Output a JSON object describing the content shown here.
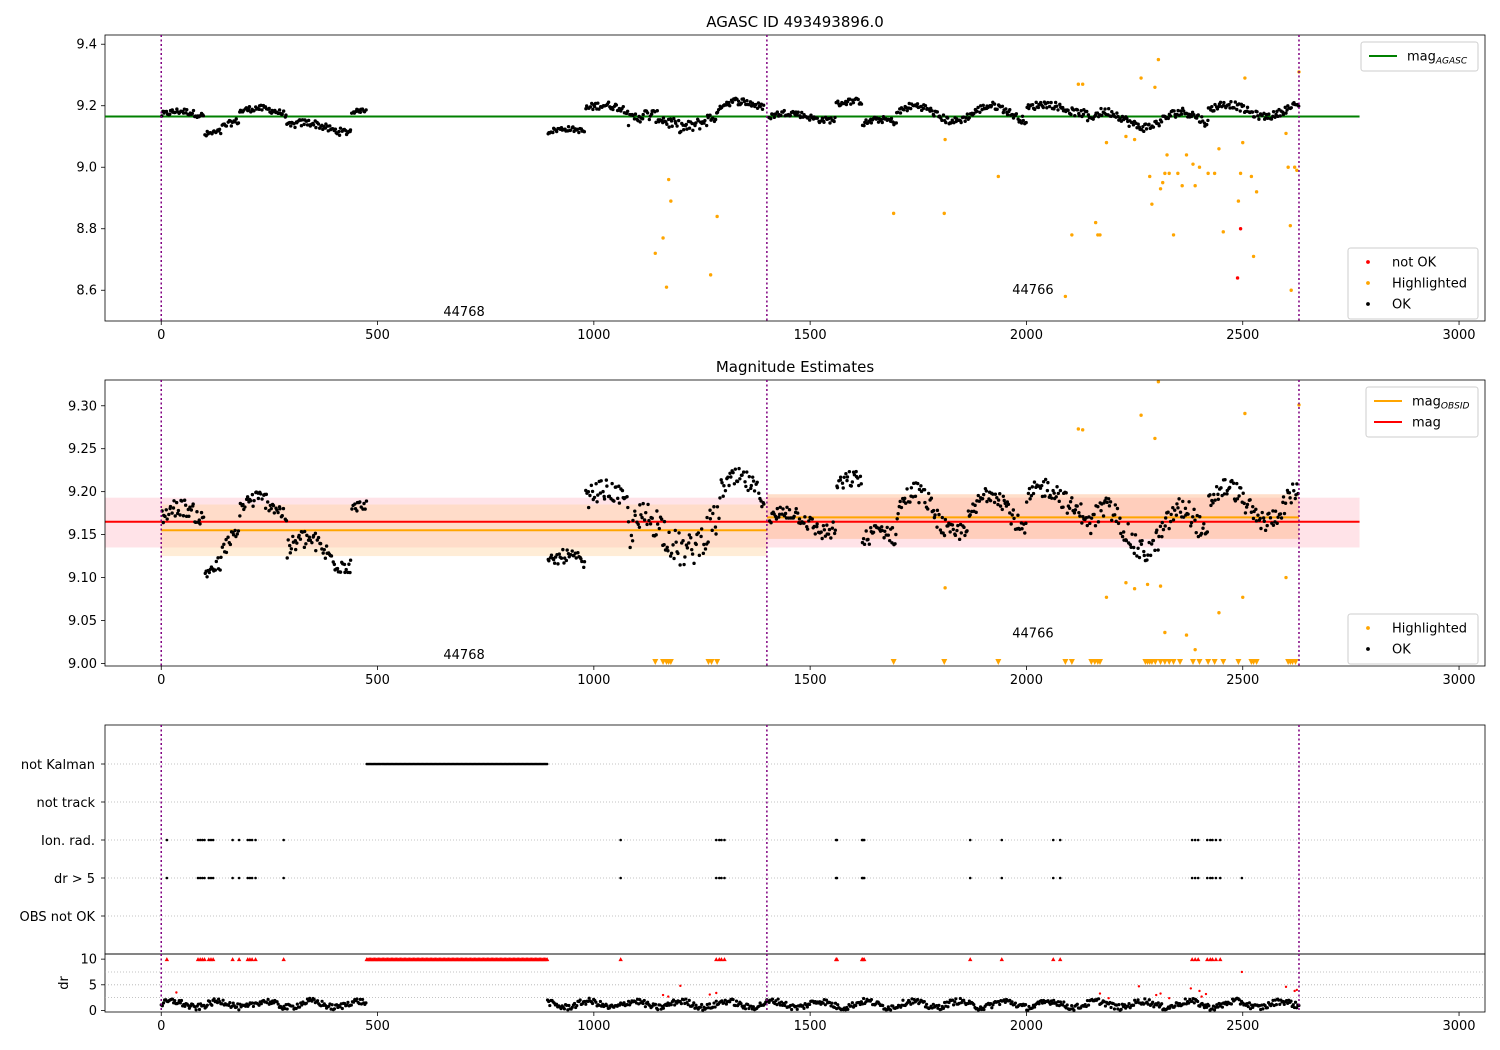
{
  "figure": {
    "background": "#ffffff"
  },
  "chart_data": [
    {
      "id": "agasc",
      "type": "scatter",
      "title": "AGASC ID 493493896.0",
      "xlim": [
        -130,
        3060
      ],
      "ylim": [
        8.5,
        9.43
      ],
      "xticks": [
        0,
        500,
        1000,
        1500,
        2000,
        2500,
        3000
      ],
      "yticks": [
        8.6,
        8.8,
        9.0,
        9.2,
        9.4
      ],
      "ytick_labels": [
        "8.6",
        "8.8",
        "9.0",
        "9.2",
        "9.4"
      ],
      "obs_boundaries": [
        0,
        1400,
        2630
      ],
      "obsids": [
        {
          "label": "44768",
          "x": 700,
          "y": 8.53
        },
        {
          "label": "44766",
          "x": 2015,
          "y": 8.6
        }
      ],
      "lines": [
        {
          "label": "mag",
          "subscript": "AGASC",
          "color": "#008000",
          "y": 9.165,
          "x": [
            -130,
            2770
          ]
        }
      ],
      "ok_segments": [
        {
          "x": [
            0,
            100
          ],
          "mean": 9.17,
          "amp": 0.012,
          "noise": 0.01
        },
        {
          "x": [
            100,
            140
          ],
          "mean": 9.105,
          "amp": 0.01,
          "noise": 0.01
        },
        {
          "x": [
            140,
            180
          ],
          "mean": 9.13,
          "amp": 0.02,
          "noise": 0.01
        },
        {
          "x": [
            180,
            290
          ],
          "mean": 9.18,
          "amp": 0.012,
          "noise": 0.01
        },
        {
          "x": [
            290,
            440
          ],
          "mean": 9.13,
          "amp": 0.015,
          "noise": 0.012
        },
        {
          "x": [
            440,
            475
          ],
          "mean": 9.18,
          "amp": 0.006,
          "noise": 0.006
        },
        {
          "x": [
            893,
            980
          ],
          "mean": 9.115,
          "amp": 0.01,
          "noise": 0.008
        },
        {
          "x": [
            980,
            1080
          ],
          "mean": 9.19,
          "amp": 0.012,
          "noise": 0.012
        },
        {
          "x": [
            1080,
            1290
          ],
          "mean": 9.15,
          "amp": 0.02,
          "noise": 0.02
        },
        {
          "x": [
            1290,
            1395
          ],
          "mean": 9.2,
          "amp": 0.015,
          "noise": 0.012
        },
        {
          "x": [
            1405,
            1560
          ],
          "mean": 9.165,
          "amp": 0.012,
          "noise": 0.01
        },
        {
          "x": [
            1560,
            1620
          ],
          "mean": 9.205,
          "amp": 0.01,
          "noise": 0.01
        },
        {
          "x": [
            1620,
            1700
          ],
          "mean": 9.14,
          "amp": 0.015,
          "noise": 0.01
        },
        {
          "x": [
            1700,
            2000
          ],
          "mean": 9.175,
          "amp": 0.025,
          "noise": 0.012
        },
        {
          "x": [
            2000,
            2140
          ],
          "mean": 9.19,
          "amp": 0.015,
          "noise": 0.012
        },
        {
          "x": [
            2140,
            2420
          ],
          "mean": 9.155,
          "amp": 0.025,
          "noise": 0.014
        },
        {
          "x": [
            2420,
            2630
          ],
          "mean": 9.185,
          "amp": 0.02,
          "noise": 0.012
        }
      ],
      "highlighted": [
        [
          1142,
          8.72
        ],
        [
          1160,
          8.77
        ],
        [
          1168,
          8.61
        ],
        [
          1173,
          8.96
        ],
        [
          1178,
          8.89
        ],
        [
          1270,
          8.65
        ],
        [
          1285,
          8.84
        ],
        [
          1693,
          8.85
        ],
        [
          1810,
          8.85
        ],
        [
          1812,
          9.09
        ],
        [
          1935,
          8.97
        ],
        [
          2090,
          8.58
        ],
        [
          2105,
          8.78
        ],
        [
          2120,
          9.27
        ],
        [
          2130,
          9.27
        ],
        [
          2160,
          8.82
        ],
        [
          2165,
          8.78
        ],
        [
          2170,
          8.78
        ],
        [
          2185,
          9.08
        ],
        [
          2230,
          9.1
        ],
        [
          2250,
          9.09
        ],
        [
          2265,
          9.29
        ],
        [
          2285,
          8.97
        ],
        [
          2290,
          8.88
        ],
        [
          2297,
          9.26
        ],
        [
          2305,
          9.35
        ],
        [
          2310,
          8.93
        ],
        [
          2315,
          8.95
        ],
        [
          2320,
          8.98
        ],
        [
          2325,
          9.04
        ],
        [
          2330,
          8.98
        ],
        [
          2340,
          8.78
        ],
        [
          2350,
          8.98
        ],
        [
          2360,
          8.94
        ],
        [
          2370,
          9.04
        ],
        [
          2385,
          9.01
        ],
        [
          2390,
          8.94
        ],
        [
          2400,
          9.0
        ],
        [
          2420,
          8.98
        ],
        [
          2435,
          8.98
        ],
        [
          2445,
          9.06
        ],
        [
          2455,
          8.79
        ],
        [
          2490,
          8.89
        ],
        [
          2495,
          8.98
        ],
        [
          2500,
          9.08
        ],
        [
          2505,
          9.29
        ],
        [
          2520,
          8.97
        ],
        [
          2525,
          8.71
        ],
        [
          2532,
          8.92
        ],
        [
          2600,
          9.11
        ],
        [
          2605,
          9.0
        ],
        [
          2610,
          8.81
        ],
        [
          2612,
          8.6
        ],
        [
          2620,
          9.0
        ],
        [
          2625,
          8.99
        ],
        [
          2630,
          9.31
        ]
      ],
      "not_ok": [
        [
          2488,
          8.64
        ],
        [
          2495,
          8.8
        ]
      ],
      "legends": [
        {
          "position": "upper-right",
          "entries": [
            {
              "label": "mag",
              "subscript": "AGASC",
              "kind": "line",
              "color": "#008000"
            }
          ]
        },
        {
          "position": "lower-right",
          "entries": [
            {
              "label": "not OK",
              "kind": "dot",
              "color": "#ff0000"
            },
            {
              "label": "Highlighted",
              "kind": "dot",
              "color": "#ffa500"
            },
            {
              "label": "OK",
              "kind": "dot",
              "color": "#000000"
            }
          ]
        }
      ]
    },
    {
      "id": "estimates",
      "type": "scatter",
      "title": "Magnitude Estimates",
      "xlim": [
        -130,
        3060
      ],
      "ylim": [
        8.997,
        9.33
      ],
      "xticks": [
        0,
        500,
        1000,
        1500,
        2000,
        2500,
        3000
      ],
      "yticks": [
        9.0,
        9.05,
        9.1,
        9.15,
        9.2,
        9.25,
        9.3
      ],
      "ytick_labels": [
        "9.00",
        "9.05",
        "9.10",
        "9.15",
        "9.20",
        "9.25",
        "9.30"
      ],
      "obs_boundaries": [
        0,
        1400,
        2630
      ],
      "obsids": [
        {
          "label": "44768",
          "x": 700,
          "y": 9.01
        },
        {
          "label": "44766",
          "x": 2015,
          "y": 9.035
        }
      ],
      "bands": [
        {
          "x": [
            -130,
            2770
          ],
          "y": [
            9.135,
            9.193
          ],
          "color": "#ffc0cb",
          "opacity": 0.45
        },
        {
          "x": [
            0,
            1400
          ],
          "y": [
            9.125,
            9.185
          ],
          "color": "#ffd39b",
          "opacity": 0.4
        },
        {
          "x": [
            1400,
            2630
          ],
          "y": [
            9.145,
            9.197
          ],
          "color": "#ffb07a",
          "opacity": 0.4
        }
      ],
      "lines": [
        {
          "label": "mag",
          "color": "#ff0000",
          "y": 9.165,
          "x": [
            -130,
            2770
          ]
        },
        {
          "label": "mag",
          "subscript": "OBSID",
          "color": "#ffa500",
          "y": 9.155,
          "x": [
            0,
            1400
          ]
        },
        {
          "label": "mag",
          "subscript": "OBSID",
          "color": "#ffa500",
          "y": 9.17,
          "x": [
            1400,
            2630
          ]
        }
      ],
      "ok_segments": [
        {
          "x": [
            0,
            100
          ],
          "mean": 9.17,
          "amp": 0.012,
          "noise": 0.01
        },
        {
          "x": [
            100,
            140
          ],
          "mean": 9.105,
          "amp": 0.01,
          "noise": 0.01
        },
        {
          "x": [
            140,
            180
          ],
          "mean": 9.13,
          "amp": 0.02,
          "noise": 0.01
        },
        {
          "x": [
            180,
            290
          ],
          "mean": 9.18,
          "amp": 0.012,
          "noise": 0.01
        },
        {
          "x": [
            290,
            440
          ],
          "mean": 9.13,
          "amp": 0.015,
          "noise": 0.012
        },
        {
          "x": [
            440,
            475
          ],
          "mean": 9.18,
          "amp": 0.006,
          "noise": 0.006
        },
        {
          "x": [
            893,
            980
          ],
          "mean": 9.115,
          "amp": 0.01,
          "noise": 0.008
        },
        {
          "x": [
            980,
            1080
          ],
          "mean": 9.19,
          "amp": 0.012,
          "noise": 0.012
        },
        {
          "x": [
            1080,
            1290
          ],
          "mean": 9.15,
          "amp": 0.02,
          "noise": 0.02
        },
        {
          "x": [
            1290,
            1395
          ],
          "mean": 9.2,
          "amp": 0.015,
          "noise": 0.012
        },
        {
          "x": [
            1405,
            1560
          ],
          "mean": 9.165,
          "amp": 0.012,
          "noise": 0.01
        },
        {
          "x": [
            1560,
            1620
          ],
          "mean": 9.205,
          "amp": 0.01,
          "noise": 0.01
        },
        {
          "x": [
            1620,
            1700
          ],
          "mean": 9.14,
          "amp": 0.015,
          "noise": 0.01
        },
        {
          "x": [
            1700,
            2000
          ],
          "mean": 9.175,
          "amp": 0.025,
          "noise": 0.012
        },
        {
          "x": [
            2000,
            2140
          ],
          "mean": 9.19,
          "amp": 0.015,
          "noise": 0.012
        },
        {
          "x": [
            2140,
            2420
          ],
          "mean": 9.155,
          "amp": 0.025,
          "noise": 0.014
        },
        {
          "x": [
            2420,
            2630
          ],
          "mean": 9.185,
          "amp": 0.02,
          "noise": 0.012
        }
      ],
      "highlighted": [
        [
          1812,
          9.088
        ],
        [
          2120,
          9.273
        ],
        [
          2130,
          9.272
        ],
        [
          2185,
          9.077
        ],
        [
          2230,
          9.094
        ],
        [
          2250,
          9.087
        ],
        [
          2265,
          9.289
        ],
        [
          2280,
          9.092
        ],
        [
          2297,
          9.262
        ],
        [
          2305,
          9.328
        ],
        [
          2310,
          9.09
        ],
        [
          2320,
          9.036
        ],
        [
          2370,
          9.033
        ],
        [
          2390,
          9.016
        ],
        [
          2445,
          9.059
        ],
        [
          2500,
          9.077
        ],
        [
          2505,
          9.291
        ],
        [
          2600,
          9.1
        ],
        [
          2630,
          9.301
        ]
      ],
      "highlighted_clipped_x": [
        1142,
        1160,
        1168,
        1173,
        1178,
        1265,
        1272,
        1285,
        1693,
        1810,
        1935,
        2090,
        2105,
        2150,
        2158,
        2165,
        2170,
        2275,
        2280,
        2285,
        2290,
        2298,
        2310,
        2320,
        2330,
        2340,
        2355,
        2385,
        2400,
        2420,
        2435,
        2455,
        2490,
        2520,
        2525,
        2532,
        2605,
        2610,
        2615,
        2622
      ],
      "legends": [
        {
          "position": "upper-right",
          "entries": [
            {
              "label": "mag",
              "subscript": "OBSID",
              "kind": "line",
              "color": "#ffa500"
            },
            {
              "label": "mag",
              "kind": "line",
              "color": "#ff0000"
            }
          ]
        },
        {
          "position": "lower-right",
          "entries": [
            {
              "label": "Highlighted",
              "kind": "dot",
              "color": "#ffa500"
            },
            {
              "label": "OK",
              "kind": "dot",
              "color": "#000000"
            }
          ]
        }
      ]
    },
    {
      "id": "flags",
      "type": "scatter",
      "xlim": [
        -130,
        3060
      ],
      "obs_boundaries": [
        0,
        1400,
        2630
      ],
      "categories": [
        "not Kalman",
        "not track",
        "Ion. rad.",
        "dr > 5",
        "OBS not OK"
      ],
      "not_kalman_x": [
        475,
        893
      ],
      "flag_x": [
        13,
        85,
        90,
        95,
        100,
        110,
        115,
        120,
        165,
        180,
        200,
        205,
        210,
        218,
        283,
        1062,
        1283,
        1290,
        1295,
        1302,
        1560,
        1562,
        1620,
        1622,
        1625,
        1870,
        1943,
        2062,
        2078,
        2383,
        2390,
        2397,
        2418,
        2425,
        2430,
        2438,
        2448
      ],
      "ion_extra_x": [],
      "dr_extra_x": [
        2498
      ]
    },
    {
      "id": "dr",
      "type": "scatter",
      "ylabel": "dr",
      "xlim": [
        -130,
        3060
      ],
      "ylim": [
        -0.3,
        11
      ],
      "xticks": [
        0,
        500,
        1000,
        1500,
        2000,
        2500,
        3000
      ],
      "yticks": [
        0,
        5,
        10
      ],
      "ytick_labels": [
        "0",
        "5",
        "10"
      ],
      "obs_boundaries": [
        0,
        1400,
        2630
      ],
      "ok_ranges": [
        [
          0,
          475
        ],
        [
          893,
          2630
        ]
      ],
      "capped_x_ranges": [
        [
          475,
          893
        ]
      ],
      "capped_x": [
        13,
        85,
        90,
        95,
        100,
        110,
        115,
        120,
        165,
        180,
        200,
        205,
        210,
        218,
        283,
        1062,
        1283,
        1290,
        1295,
        1302,
        1560,
        1562,
        1620,
        1622,
        1625,
        1870,
        1943,
        2062,
        2078,
        2383,
        2390,
        2397,
        2418,
        2425,
        2430,
        2438,
        2448
      ],
      "red_small": [
        [
          35,
          3.5
        ],
        [
          1160,
          3.0
        ],
        [
          1172,
          2.7
        ],
        [
          1200,
          4.8
        ],
        [
          1268,
          3.1
        ],
        [
          1283,
          3.4
        ],
        [
          2170,
          3.3
        ],
        [
          2190,
          2.4
        ],
        [
          2260,
          4.7
        ],
        [
          2300,
          3.0
        ],
        [
          2310,
          3.3
        ],
        [
          2330,
          2.4
        ],
        [
          2380,
          4.3
        ],
        [
          2400,
          3.8
        ],
        [
          2405,
          2.7
        ],
        [
          2415,
          3.2
        ],
        [
          2498,
          7.5
        ],
        [
          2600,
          4.6
        ],
        [
          2620,
          3.8
        ],
        [
          2625,
          4.0
        ]
      ]
    }
  ]
}
